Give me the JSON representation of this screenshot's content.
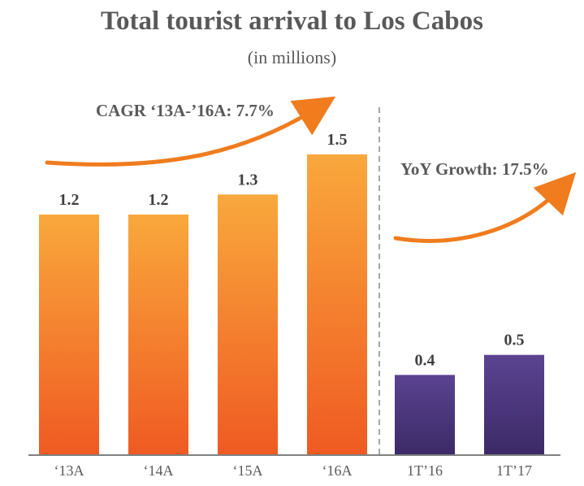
{
  "colors": {
    "orange_top": "#f9a83c",
    "orange_bottom": "#ef5a22",
    "purple_top": "#5b4391",
    "purple_bottom": "#3b2a66",
    "arrow": "#f07c1e",
    "axis": "#808080",
    "divider": "#a6a6a6"
  },
  "chart_data": {
    "type": "bar",
    "title": "Total tourist arrival to Los Cabos",
    "subtitle": "(in millions)",
    "categories": [
      "‘13A",
      "‘14A",
      "‘15A",
      "‘16A",
      "1T’16",
      "1T’17"
    ],
    "series": [
      {
        "values": [
          1.2,
          1.2,
          1.3,
          1.5,
          0.4,
          0.5
        ]
      }
    ],
    "value_labels": [
      "1.2",
      "1.2",
      "1.3",
      "1.5",
      "0.4",
      "0.5"
    ],
    "bar_colors": [
      "orange",
      "orange",
      "orange",
      "orange",
      "purple",
      "purple"
    ],
    "ylim": [
      0,
      1.55
    ],
    "grid": false,
    "annotations": [
      {
        "text": "CAGR ‘13A-’16A: 7.7%"
      },
      {
        "text": "YoY Growth: 17.5%"
      }
    ]
  }
}
